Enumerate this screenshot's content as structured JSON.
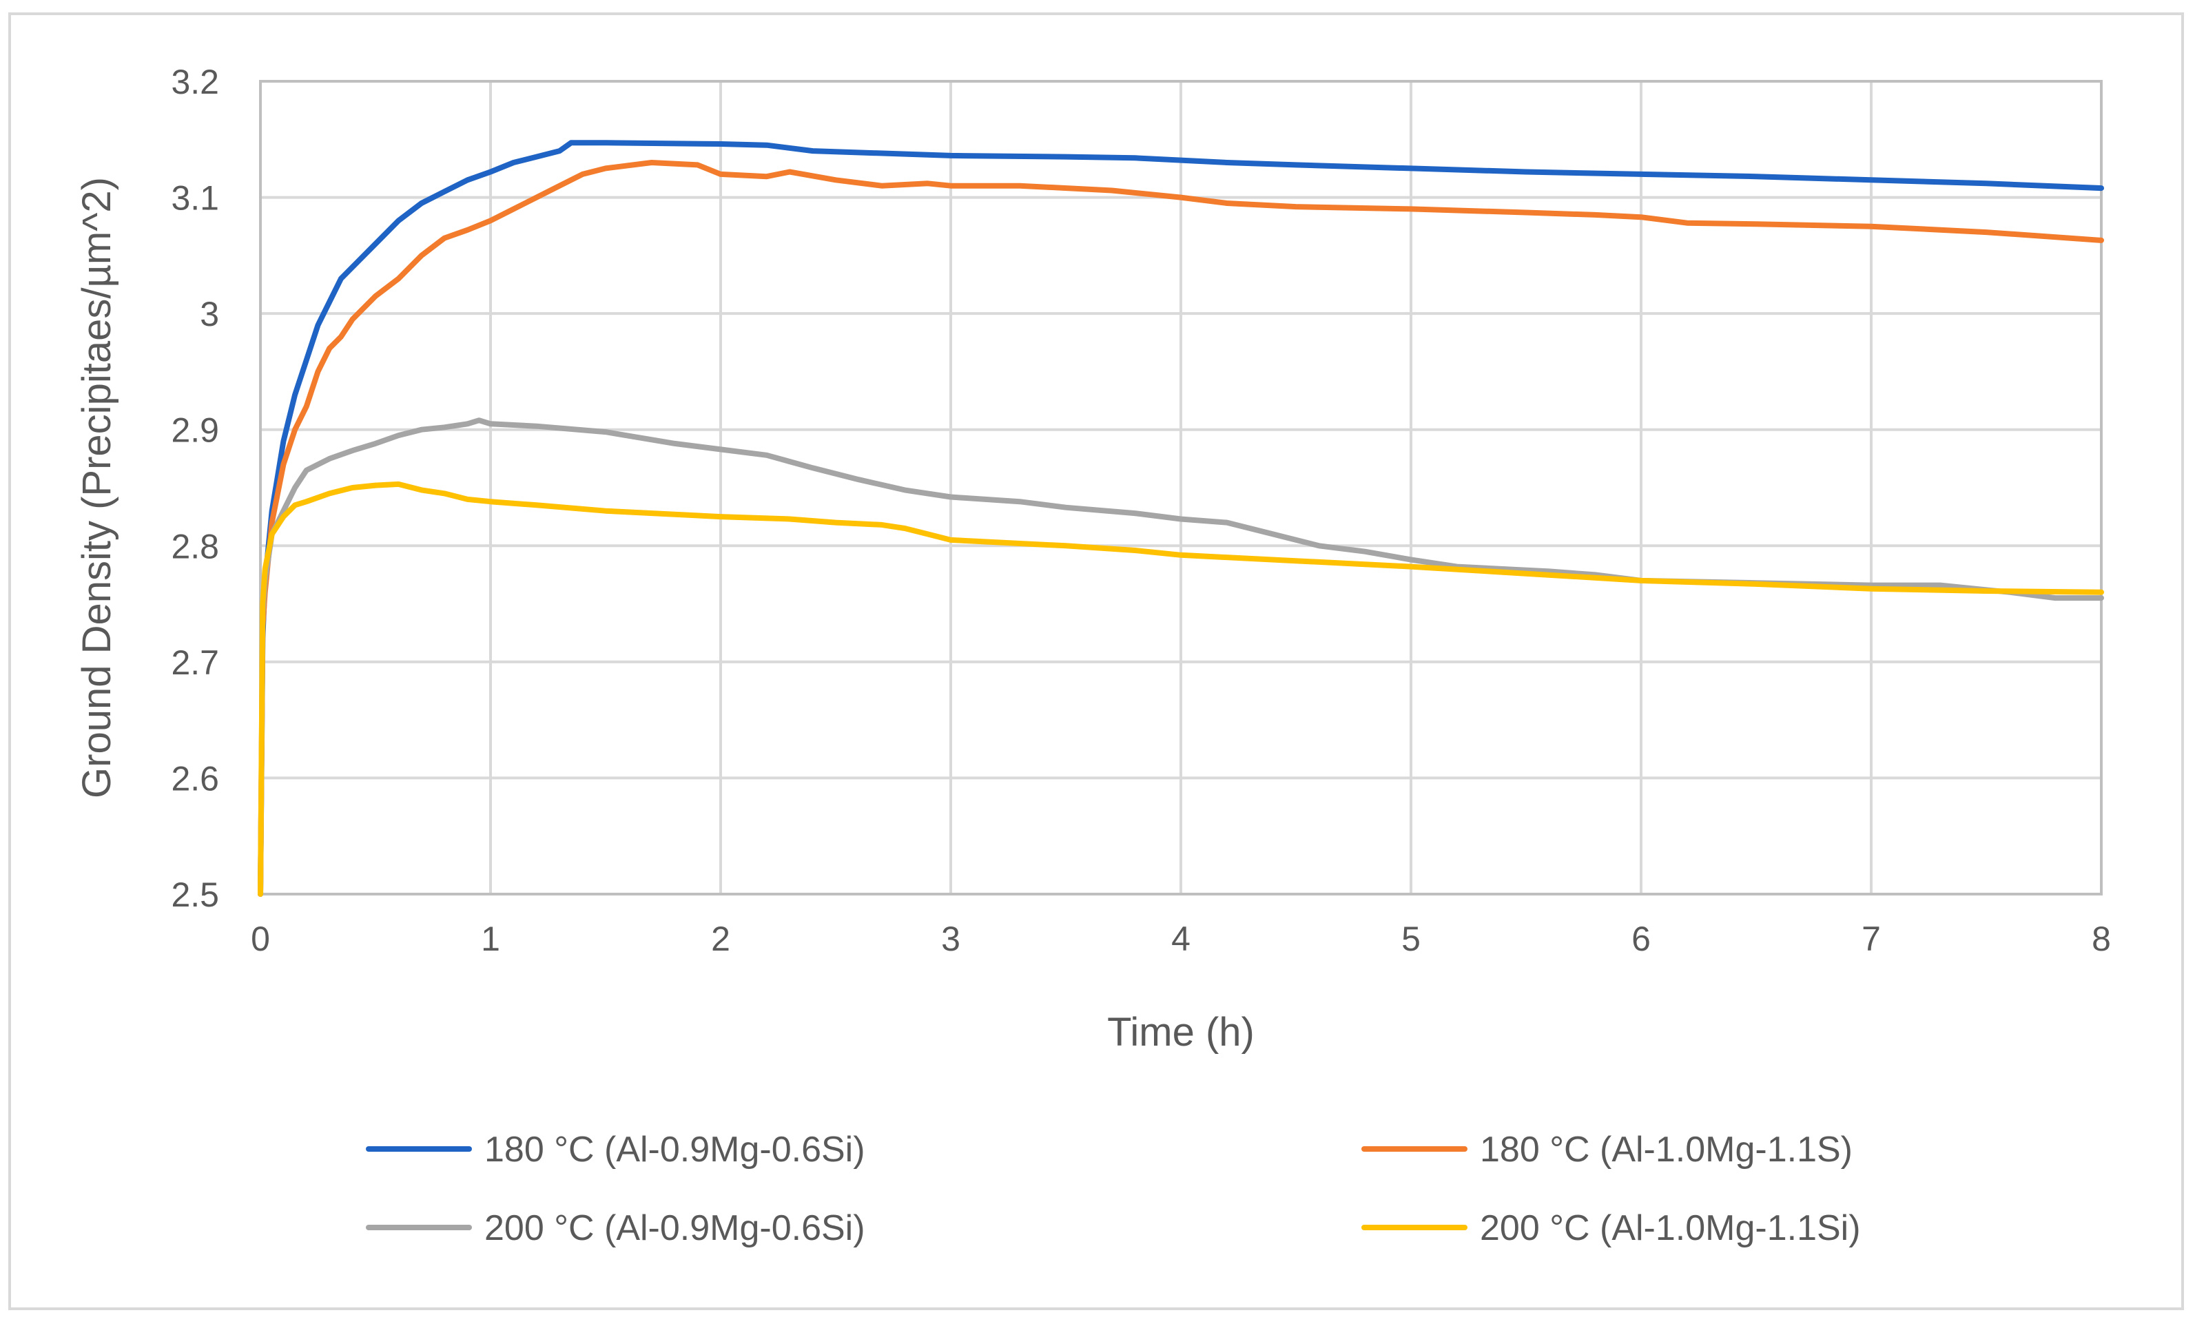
{
  "chart_data": {
    "type": "line",
    "title": "",
    "xlabel": "Time (h)",
    "ylabel": "Ground Density (Precipitaes/µm^2)",
    "xlim": [
      0,
      8
    ],
    "ylim": [
      2.5,
      3.2
    ],
    "xticks": [
      0,
      1,
      2,
      3,
      4,
      5,
      6,
      7,
      8
    ],
    "yticks": [
      2.5,
      2.6,
      2.7,
      2.8,
      2.9,
      3.0,
      3.1,
      3.2
    ],
    "xtick_labels": [
      "0",
      "1",
      "2",
      "3",
      "4",
      "5",
      "6",
      "7",
      "8"
    ],
    "ytick_labels": [
      "2.5",
      "2.6",
      "2.7",
      "2.8",
      "2.9",
      "3",
      "3.1",
      "3.2"
    ],
    "grid": true,
    "legend_position": "bottom",
    "series": [
      {
        "name": "180 °C (Al-0.9Mg-0.6Si)",
        "color": "#1F63C4",
        "x": [
          0,
          0.01,
          0.02,
          0.05,
          0.1,
          0.15,
          0.2,
          0.25,
          0.3,
          0.35,
          0.4,
          0.5,
          0.6,
          0.7,
          0.8,
          0.9,
          1.0,
          1.1,
          1.2,
          1.3,
          1.35,
          1.5,
          2.0,
          2.2,
          2.4,
          3.0,
          3.5,
          3.8,
          4.0,
          4.2,
          4.5,
          5.0,
          5.5,
          6.0,
          6.5,
          7.0,
          7.5,
          8.0
        ],
        "y": [
          2.5,
          2.72,
          2.77,
          2.83,
          2.89,
          2.93,
          2.96,
          2.99,
          3.01,
          3.03,
          3.04,
          3.06,
          3.08,
          3.095,
          3.105,
          3.115,
          3.122,
          3.13,
          3.135,
          3.14,
          3.147,
          3.147,
          3.146,
          3.145,
          3.14,
          3.136,
          3.135,
          3.134,
          3.132,
          3.13,
          3.128,
          3.125,
          3.122,
          3.12,
          3.118,
          3.115,
          3.112,
          3.108
        ]
      },
      {
        "name": "180 °C (Al-1.0Mg-1.1S)",
        "color": "#F37B2C",
        "x": [
          0,
          0.01,
          0.02,
          0.05,
          0.1,
          0.15,
          0.2,
          0.25,
          0.3,
          0.35,
          0.4,
          0.5,
          0.6,
          0.7,
          0.8,
          0.9,
          1.0,
          1.1,
          1.2,
          1.3,
          1.4,
          1.5,
          1.7,
          1.9,
          2.0,
          2.2,
          2.3,
          2.5,
          2.7,
          2.9,
          3.0,
          3.3,
          3.7,
          4.0,
          4.2,
          4.5,
          5.0,
          5.5,
          5.8,
          6.0,
          6.2,
          6.5,
          7.0,
          7.5,
          8.0
        ],
        "y": [
          2.5,
          2.73,
          2.76,
          2.82,
          2.87,
          2.9,
          2.92,
          2.95,
          2.97,
          2.98,
          2.995,
          3.015,
          3.03,
          3.05,
          3.065,
          3.072,
          3.08,
          3.09,
          3.1,
          3.11,
          3.12,
          3.125,
          3.13,
          3.128,
          3.12,
          3.118,
          3.122,
          3.115,
          3.11,
          3.112,
          3.11,
          3.11,
          3.106,
          3.1,
          3.095,
          3.092,
          3.09,
          3.087,
          3.085,
          3.083,
          3.078,
          3.077,
          3.075,
          3.07,
          3.063
        ]
      },
      {
        "name": "200 °C (Al-0.9Mg-0.6Si)",
        "color": "#A5A5A5",
        "x": [
          0,
          0.01,
          0.02,
          0.05,
          0.1,
          0.15,
          0.2,
          0.3,
          0.4,
          0.5,
          0.6,
          0.7,
          0.8,
          0.9,
          0.95,
          1.0,
          1.2,
          1.5,
          1.8,
          2.0,
          2.2,
          2.4,
          2.6,
          2.8,
          3.0,
          3.3,
          3.5,
          3.8,
          4.0,
          4.2,
          4.4,
          4.6,
          4.8,
          5.0,
          5.2,
          5.6,
          5.8,
          6.0,
          6.5,
          7.0,
          7.3,
          7.6,
          7.8,
          8.0
        ],
        "y": [
          2.5,
          2.74,
          2.77,
          2.81,
          2.83,
          2.85,
          2.865,
          2.875,
          2.882,
          2.888,
          2.895,
          2.9,
          2.902,
          2.905,
          2.908,
          2.905,
          2.903,
          2.898,
          2.888,
          2.883,
          2.878,
          2.867,
          2.857,
          2.848,
          2.842,
          2.838,
          2.833,
          2.828,
          2.823,
          2.82,
          2.81,
          2.8,
          2.795,
          2.788,
          2.782,
          2.778,
          2.775,
          2.77,
          2.768,
          2.766,
          2.766,
          2.76,
          2.755,
          2.755
        ]
      },
      {
        "name": "200 °C (Al-1.0Mg-1.1Si)",
        "color": "#FFC000",
        "x": [
          0,
          0.01,
          0.02,
          0.05,
          0.1,
          0.15,
          0.2,
          0.3,
          0.4,
          0.5,
          0.6,
          0.7,
          0.8,
          0.9,
          1.0,
          1.2,
          1.5,
          2.0,
          2.3,
          2.5,
          2.7,
          2.8,
          2.9,
          3.0,
          3.5,
          3.8,
          4.0,
          4.5,
          5.0,
          5.5,
          6.0,
          6.5,
          7.0,
          7.5,
          8.0
        ],
        "y": [
          2.5,
          2.75,
          2.78,
          2.81,
          2.825,
          2.835,
          2.838,
          2.845,
          2.85,
          2.852,
          2.853,
          2.848,
          2.845,
          2.84,
          2.838,
          2.835,
          2.83,
          2.825,
          2.823,
          2.82,
          2.818,
          2.815,
          2.81,
          2.805,
          2.8,
          2.796,
          2.792,
          2.787,
          2.782,
          2.776,
          2.77,
          2.767,
          2.763,
          2.761,
          2.76
        ]
      }
    ]
  }
}
